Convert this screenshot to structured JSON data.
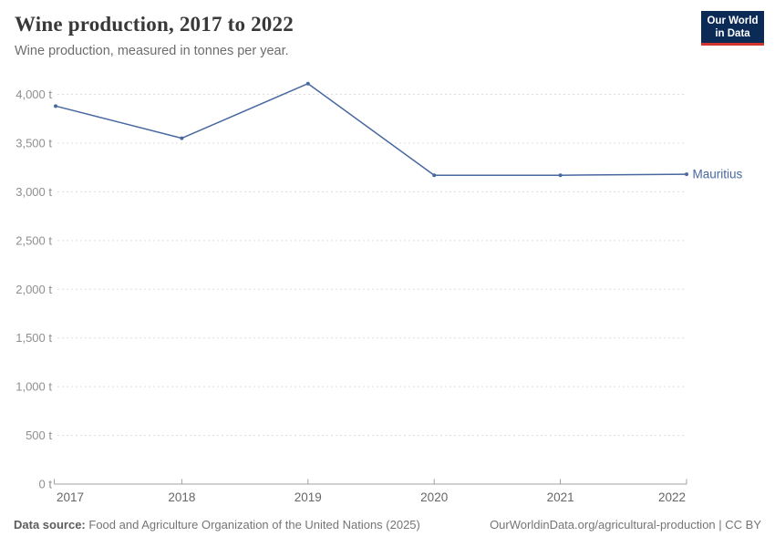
{
  "header": {
    "title": "Wine production, 2017 to 2022",
    "subtitle": "Wine production, measured in tonnes per year.",
    "logo": {
      "line1": "Our World",
      "line2": "in Data"
    }
  },
  "footer": {
    "datasource_label": "Data source:",
    "datasource_value": "Food and Agriculture Organization of the United Nations (2025)",
    "attribution": "OurWorldinData.org/agricultural-production | CC BY"
  },
  "colors": {
    "line": "#4868a0",
    "logo_bg": "#0b2b56",
    "logo_accent": "#d0342c",
    "gridline": "#dddddd",
    "axis": "#a1a1a1",
    "ytick_label": "#8f8f8f",
    "xtick_label": "#666666"
  },
  "chart_data": {
    "type": "line",
    "title": "Wine production, 2017 to 2022",
    "subtitle": "Wine production, measured in tonnes per year.",
    "x": [
      2017,
      2018,
      2019,
      2020,
      2021,
      2022
    ],
    "series": [
      {
        "name": "Mauritius",
        "values": [
          3880,
          3550,
          4110,
          3170,
          3170,
          3180
        ]
      }
    ],
    "unit": "t",
    "xlabel": "",
    "ylabel": "tonnes",
    "ylim": [
      0,
      4000
    ],
    "yticks": [
      0,
      500,
      1000,
      1500,
      2000,
      2500,
      3000,
      3500,
      4000
    ],
    "grid": "horizontal-dashed",
    "legend_position": "end-of-line-label"
  }
}
